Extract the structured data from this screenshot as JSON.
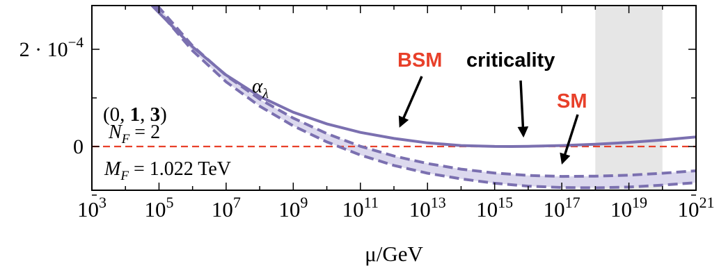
{
  "chart_data": {
    "type": "line",
    "xlabel": "μ/GeV",
    "x_scale": "log10",
    "xlim_log10": [
      3,
      21
    ],
    "ylim": [
      -9e-05,
      0.00029
    ],
    "x_ticks": [
      {
        "base": "10",
        "exp": "3"
      },
      {
        "base": "10",
        "exp": "5"
      },
      {
        "base": "10",
        "exp": "7"
      },
      {
        "base": "10",
        "exp": "9"
      },
      {
        "base": "10",
        "exp": "11"
      },
      {
        "base": "10",
        "exp": "13"
      },
      {
        "base": "10",
        "exp": "15"
      },
      {
        "base": "10",
        "exp": "17"
      },
      {
        "base": "10",
        "exp": "19"
      },
      {
        "base": "10",
        "exp": "21"
      }
    ],
    "y_ticks": [
      {
        "value": 0,
        "label": "0"
      },
      {
        "value": 0.0002,
        "label": "2 · 10",
        "exp": "−4"
      }
    ],
    "series": [
      {
        "style": "solid",
        "color": "#7b70b0",
        "x_log10": [
          4.79,
          6,
          7,
          8,
          9,
          10,
          11,
          12,
          13,
          14,
          15,
          15.5,
          16,
          17,
          18,
          19,
          20,
          21
        ],
        "y": [
          0.00029,
          0.000205,
          0.000147,
          0.000103,
          7.05e-05,
          4.65e-05,
          2.9e-05,
          1.65e-05,
          7.5e-06,
          2e-06,
          1e-07,
          0.0,
          4e-07,
          2e-06,
          4.5e-06,
          8.5e-06,
          1.35e-05,
          1.95e-05
        ]
      },
      {
        "style": "dashed",
        "color": "#7b70b0",
        "x_log10": [
          4.95,
          6,
          7,
          8,
          9,
          10,
          11,
          12,
          13,
          14,
          15,
          16,
          17,
          18,
          19,
          20,
          21
        ],
        "y": [
          0.00029,
          0.000207,
          0.000146,
          9.75e-05,
          5.85e-05,
          2.65e-05,
          5e-07,
          -1.95e-05,
          -3.5e-05,
          -4.65e-05,
          -5.45e-05,
          -5.95e-05,
          -6.15e-05,
          -6.1e-05,
          -5.9e-05,
          -5.5e-05,
          -5e-05
        ]
      },
      {
        "style": "dashed",
        "color": "#7b70b0",
        "x_log10": [
          4.85,
          6,
          7,
          8,
          9,
          10,
          11,
          12,
          13,
          14,
          15,
          16,
          17,
          18,
          19,
          20,
          21
        ],
        "y": [
          0.00029,
          0.000197,
          0.000133,
          8.3e-05,
          4.25e-05,
          9.5e-06,
          -1.75e-05,
          -3.9e-05,
          -5.5e-05,
          -6.65e-05,
          -7.55e-05,
          -8.15e-05,
          -8.45e-05,
          -8.5e-05,
          -8.35e-05,
          -7.95e-05,
          -7.45e-05
        ]
      }
    ],
    "zero_line_color": "#e8402a",
    "shaded_region_log10": [
      18,
      20
    ],
    "shaded_region_color": "#e6e6e6",
    "band_fill_color": "#dcd9ee",
    "curve_label": {
      "base": "α",
      "sub": "λ"
    },
    "model_tuple": {
      "open": "(0, ",
      "b1": "1",
      "mid": ", ",
      "b2": "3",
      "close": ")"
    },
    "nf": {
      "base": "N",
      "sub": "F",
      "rest": " = 2"
    },
    "mf": {
      "base": "M",
      "sub": "F",
      "rest": " = 1.022 TeV"
    },
    "annotations": [
      {
        "text": "BSM",
        "color": "#e8402a",
        "arrow_to_log10": [
          11.2,
          1.5e-05
        ]
      },
      {
        "text": "criticality",
        "color": "#000000",
        "arrow_to_log10": [
          15.7,
          6.5e-06
        ]
      },
      {
        "text": "SM",
        "color": "#e8402a",
        "arrow_to_log10": [
          16.9,
          -5.4e-05
        ]
      }
    ]
  }
}
